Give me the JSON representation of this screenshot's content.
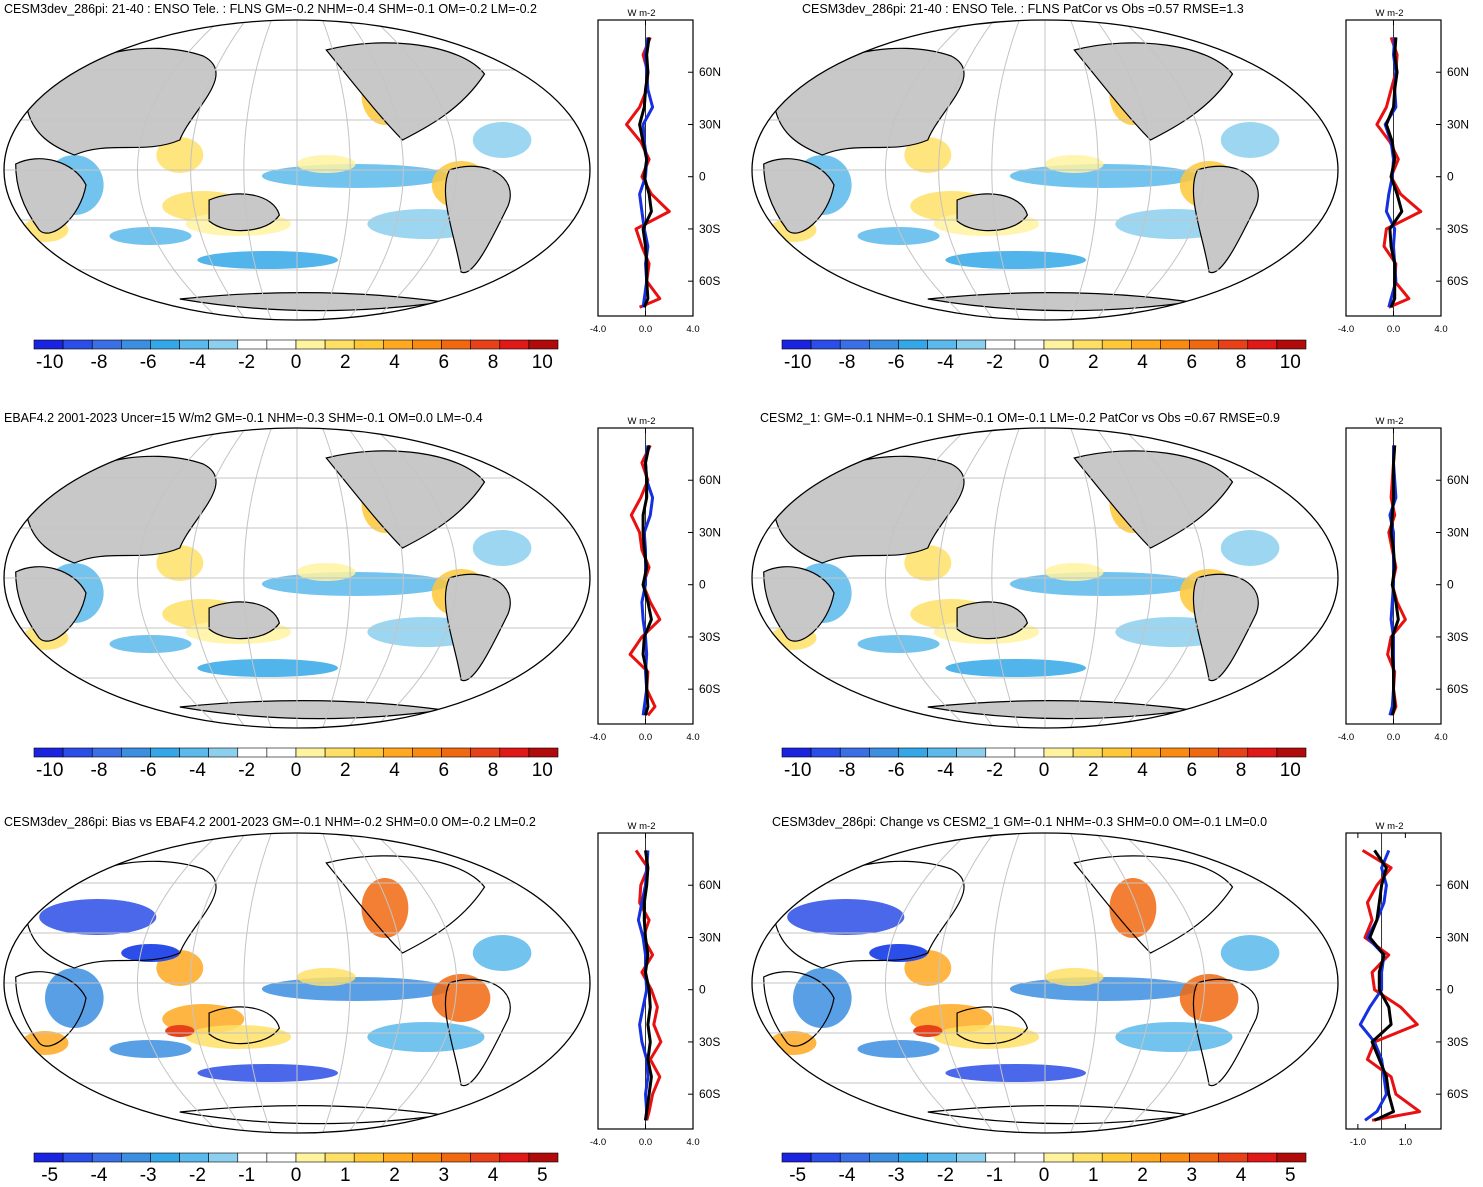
{
  "palette": [
    "#1a24e0",
    "#2b4ee8",
    "#3a6fe6",
    "#3b8ee0",
    "#33a7e8",
    "#5bb9ec",
    "#8ccfef",
    "#ffffff",
    "#ffffff",
    "#fff3a0",
    "#ffe066",
    "#ffc838",
    "#ffa820",
    "#fb8a10",
    "#f06810",
    "#e84018",
    "#e01818",
    "#b00a0a"
  ],
  "line_colors": {
    "model": "#e81010",
    "obs": "#1530e0",
    "other": "#000000"
  },
  "chart_data": [
    {
      "id": "p1",
      "type": "heatmap",
      "title": "CESM3dev_286pi: 21-40 : ENSO Tele. : FLNS GM=-0.2 NHM=-0.4 SHM=-0.1 OM=-0.2 LM=-0.2",
      "colorbar": {
        "levels": [
          -10,
          -8,
          -6,
          -4,
          -2,
          0,
          2,
          4,
          6,
          8,
          10
        ],
        "labels": [
          "-10",
          "-8",
          "-6",
          "-4",
          "-2",
          "0",
          "2",
          "4",
          "6",
          "8",
          "10"
        ]
      },
      "profile": {
        "unit": "W m-2",
        "xlim": [
          -4,
          4
        ],
        "xticks": [
          "-4.0",
          "0.0",
          "4.0"
        ],
        "lat_ticks": [
          "60N",
          "30N",
          "0",
          "30S",
          "60S"
        ],
        "lat": [
          80,
          70,
          60,
          50,
          40,
          30,
          20,
          10,
          0,
          -10,
          -20,
          -30,
          -40,
          -50,
          -60,
          -70,
          -75
        ],
        "series": [
          {
            "name": "model",
            "values": [
              0.4,
              -0.2,
              0.2,
              0.1,
              -0.5,
              -1.6,
              -0.4,
              0.3,
              -0.3,
              0.5,
              2.0,
              -0.8,
              -0.3,
              0.3,
              0.1,
              1.2,
              -0.5
            ]
          },
          {
            "name": "obs",
            "values": [
              0.2,
              0.0,
              0.1,
              0.2,
              0.6,
              -0.2,
              -0.1,
              0.1,
              0.0,
              -0.5,
              -0.3,
              -0.1,
              0.2,
              0.0,
              0.1,
              -0.1,
              -0.2
            ]
          },
          {
            "name": "other",
            "values": [
              0.3,
              0.1,
              0.2,
              0.0,
              -0.1,
              -0.5,
              -0.2,
              0.1,
              -0.1,
              0.3,
              0.5,
              -0.2,
              0.0,
              0.1,
              0.1,
              0.2,
              -0.1
            ]
          }
        ]
      }
    },
    {
      "id": "p2",
      "type": "heatmap",
      "title": "CESM3dev_286pi: 21-40 : ENSO Tele. : FLNS PatCor vs Obs =0.57 RMSE=1.3",
      "colorbar": {
        "levels": [
          -10,
          -8,
          -6,
          -4,
          -2,
          0,
          2,
          4,
          6,
          8,
          10
        ],
        "labels": [
          "-10",
          "-8",
          "-6",
          "-4",
          "-2",
          "0",
          "2",
          "4",
          "6",
          "8",
          "10"
        ]
      },
      "profile": {
        "unit": "W m-2",
        "xlim": [
          -4,
          4
        ],
        "xticks": [
          "-4.0",
          "0.0",
          "4.0"
        ],
        "lat_ticks": [
          "60N",
          "30N",
          "0",
          "30S",
          "60S"
        ],
        "lat": [
          80,
          70,
          60,
          50,
          40,
          30,
          20,
          10,
          0,
          -10,
          -20,
          -30,
          -40,
          -50,
          -60,
          -70,
          -75
        ],
        "series": [
          {
            "name": "model",
            "values": [
              -0.2,
              0.3,
              0.2,
              -0.2,
              -0.6,
              -1.4,
              -0.3,
              0.4,
              -0.2,
              0.6,
              2.3,
              -0.6,
              -0.8,
              0.2,
              0.1,
              1.3,
              -0.4
            ]
          },
          {
            "name": "obs",
            "values": [
              0.1,
              0.0,
              0.2,
              0.1,
              0.2,
              -0.7,
              -0.2,
              0.0,
              -0.1,
              -0.4,
              -0.6,
              0.1,
              0.0,
              0.1,
              0.2,
              -0.2,
              -0.4
            ]
          },
          {
            "name": "other",
            "values": [
              0.2,
              0.1,
              0.3,
              0.1,
              0.0,
              -0.6,
              -0.1,
              0.1,
              -0.2,
              0.3,
              0.7,
              -0.3,
              -0.2,
              0.1,
              0.1,
              0.1,
              -0.2
            ]
          }
        ]
      }
    },
    {
      "id": "p3",
      "type": "heatmap",
      "title": "EBAF4.2 2001-2023 Uncer=15 W/m2 GM=-0.1 NHM=-0.3 SHM=-0.1 OM=0.0 LM=-0.4",
      "colorbar": {
        "levels": [
          -10,
          -8,
          -6,
          -4,
          -2,
          0,
          2,
          4,
          6,
          8,
          10
        ],
        "labels": [
          "-10",
          "-8",
          "-6",
          "-4",
          "-2",
          "0",
          "2",
          "4",
          "6",
          "8",
          "10"
        ]
      },
      "profile": {
        "unit": "W m-2",
        "xlim": [
          -4,
          4
        ],
        "xticks": [
          "-4.0",
          "0.0",
          "4.0"
        ],
        "lat_ticks": [
          "60N",
          "30N",
          "0",
          "30S",
          "60S"
        ],
        "lat": [
          80,
          70,
          60,
          50,
          40,
          30,
          20,
          10,
          0,
          -10,
          -20,
          -30,
          -40,
          -50,
          -60,
          -70,
          -75
        ],
        "series": [
          {
            "name": "model",
            "values": [
              0.4,
              -0.3,
              0.2,
              -0.4,
              -1.2,
              -0.5,
              -0.3,
              0.3,
              -0.2,
              0.4,
              1.2,
              -0.3,
              -1.3,
              0.2,
              0.1,
              0.8,
              0.2
            ]
          },
          {
            "name": "obs",
            "values": [
              0.2,
              0.0,
              0.1,
              0.6,
              0.4,
              -0.1,
              0.0,
              0.0,
              0.0,
              -0.3,
              -0.2,
              0.0,
              0.1,
              0.0,
              0.1,
              -0.1,
              -0.2
            ]
          },
          {
            "name": "other",
            "values": [
              0.3,
              0.0,
              0.1,
              0.1,
              -0.2,
              -0.2,
              -0.1,
              0.1,
              -0.2,
              0.2,
              0.5,
              -0.1,
              -0.2,
              0.1,
              0.1,
              0.2,
              0.0
            ]
          }
        ]
      }
    },
    {
      "id": "p4",
      "type": "heatmap",
      "title": "CESM2_1: GM=-0.1 NHM=-0.1 SHM=-0.1 OM=-0.1 LM=-0.2 PatCor vs Obs =0.67 RMSE=0.9",
      "colorbar": {
        "levels": [
          -10,
          -8,
          -6,
          -4,
          -2,
          0,
          2,
          4,
          6,
          8,
          10
        ],
        "labels": [
          "-10",
          "-8",
          "-6",
          "-4",
          "-2",
          "0",
          "2",
          "4",
          "6",
          "8",
          "10"
        ]
      },
      "profile": {
        "unit": "W m-2",
        "xlim": [
          -4,
          4
        ],
        "xticks": [
          "-4.0",
          "0.0",
          "4.0"
        ],
        "lat_ticks": [
          "60N",
          "30N",
          "0",
          "30S",
          "60S"
        ],
        "lat": [
          80,
          70,
          60,
          50,
          40,
          30,
          20,
          10,
          0,
          -10,
          -20,
          -30,
          -40,
          -50,
          -60,
          -70,
          -75
        ],
        "series": [
          {
            "name": "model",
            "values": [
              0.1,
              0.0,
              -0.1,
              -0.2,
              0.1,
              -0.4,
              -0.1,
              0.2,
              -0.1,
              0.3,
              1.0,
              -0.2,
              -0.5,
              0.1,
              0.0,
              0.2,
              -0.1
            ]
          },
          {
            "name": "obs",
            "values": [
              0.0,
              0.0,
              0.1,
              0.2,
              -0.3,
              0.0,
              0.0,
              0.0,
              0.0,
              -0.1,
              -0.2,
              0.0,
              0.0,
              0.0,
              0.0,
              -0.1,
              -0.3
            ]
          },
          {
            "name": "other",
            "values": [
              0.1,
              0.0,
              0.0,
              0.0,
              -0.1,
              -0.2,
              0.0,
              0.1,
              -0.1,
              0.2,
              0.4,
              -0.1,
              -0.1,
              0.0,
              0.0,
              0.1,
              -0.1
            ]
          }
        ]
      }
    },
    {
      "id": "p5",
      "type": "heatmap",
      "title": "CESM3dev_286pi: Bias vs EBAF4.2 2001-2023 GM=-0.1 NHM=-0.2 SHM=0.0 OM=-0.2 LM=0.2",
      "colorbar": {
        "levels": [
          -5,
          -4,
          -3,
          -2,
          -1,
          0,
          1,
          2,
          3,
          4,
          5
        ],
        "labels": [
          "-5",
          "-4",
          "-3",
          "-2",
          "-1",
          "0",
          "1",
          "2",
          "3",
          "4",
          "5"
        ]
      },
      "profile": {
        "unit": "W m-2",
        "xlim": [
          -4,
          4
        ],
        "xticks": [
          "-4.0",
          "0.0",
          "4.0"
        ],
        "lat_ticks": [
          "60N",
          "30N",
          "0",
          "30S",
          "60S"
        ],
        "lat": [
          80,
          70,
          60,
          50,
          40,
          30,
          20,
          10,
          0,
          -10,
          -20,
          -30,
          -40,
          -50,
          -60,
          -70,
          -75
        ],
        "series": [
          {
            "name": "model",
            "values": [
              -0.8,
              0.2,
              -0.4,
              -0.5,
              0.3,
              -0.2,
              0.6,
              -0.3,
              0.5,
              1.0,
              0.7,
              1.3,
              0.4,
              1.2,
              0.6,
              0.3,
              0.1
            ]
          },
          {
            "name": "obs",
            "values": [
              0.2,
              0.1,
              0.0,
              -0.3,
              -0.6,
              -0.2,
              0.0,
              0.0,
              0.1,
              -0.2,
              -0.5,
              -0.3,
              0.1,
              0.2,
              0.0,
              0.1,
              0.0
            ]
          },
          {
            "name": "other",
            "values": [
              0.0,
              0.2,
              0.1,
              -0.1,
              -0.1,
              0.0,
              0.2,
              0.0,
              0.3,
              0.4,
              0.2,
              0.4,
              0.2,
              0.5,
              0.3,
              0.1,
              0.0
            ]
          }
        ]
      }
    },
    {
      "id": "p6",
      "type": "heatmap",
      "title": "CESM3dev_286pi: Change vs CESM2_1 GM=-0.1 NHM=-0.3 SHM=0.0 OM=-0.1 LM=0.0",
      "colorbar": {
        "levels": [
          -5,
          -4,
          -3,
          -2,
          -1,
          0,
          1,
          2,
          3,
          4,
          5
        ],
        "labels": [
          "-5",
          "-4",
          "-3",
          "-2",
          "-1",
          "0",
          "1",
          "2",
          "3",
          "4",
          "5"
        ]
      },
      "profile": {
        "unit": "W m-2",
        "xlim": [
          -1.5,
          2.5
        ],
        "xticks": [
          "-1.0",
          "1.0"
        ],
        "lat_ticks": [
          "60N",
          "30N",
          "0",
          "30S",
          "60S"
        ],
        "lat": [
          80,
          70,
          60,
          50,
          40,
          30,
          20,
          10,
          0,
          -10,
          -20,
          -30,
          -40,
          -50,
          -60,
          -70,
          -75
        ],
        "series": [
          {
            "name": "model",
            "values": [
              -0.8,
              0.4,
              -0.2,
              -0.6,
              -0.4,
              -0.7,
              0.3,
              -0.4,
              -0.3,
              0.8,
              1.5,
              -0.3,
              -0.6,
              0.4,
              0.6,
              1.6,
              -0.4
            ]
          },
          {
            "name": "obs",
            "values": [
              0.3,
              0.0,
              0.2,
              0.1,
              -0.2,
              -0.6,
              0.1,
              0.0,
              0.0,
              -0.5,
              -0.9,
              -0.3,
              0.0,
              0.1,
              0.2,
              -0.2,
              -0.7
            ]
          },
          {
            "name": "other",
            "values": [
              -0.3,
              0.2,
              0.0,
              -0.1,
              -0.2,
              -0.5,
              0.1,
              -0.1,
              -0.1,
              0.3,
              0.4,
              -0.4,
              -0.1,
              0.2,
              0.3,
              0.5,
              -0.3
            ]
          }
        ]
      }
    }
  ]
}
